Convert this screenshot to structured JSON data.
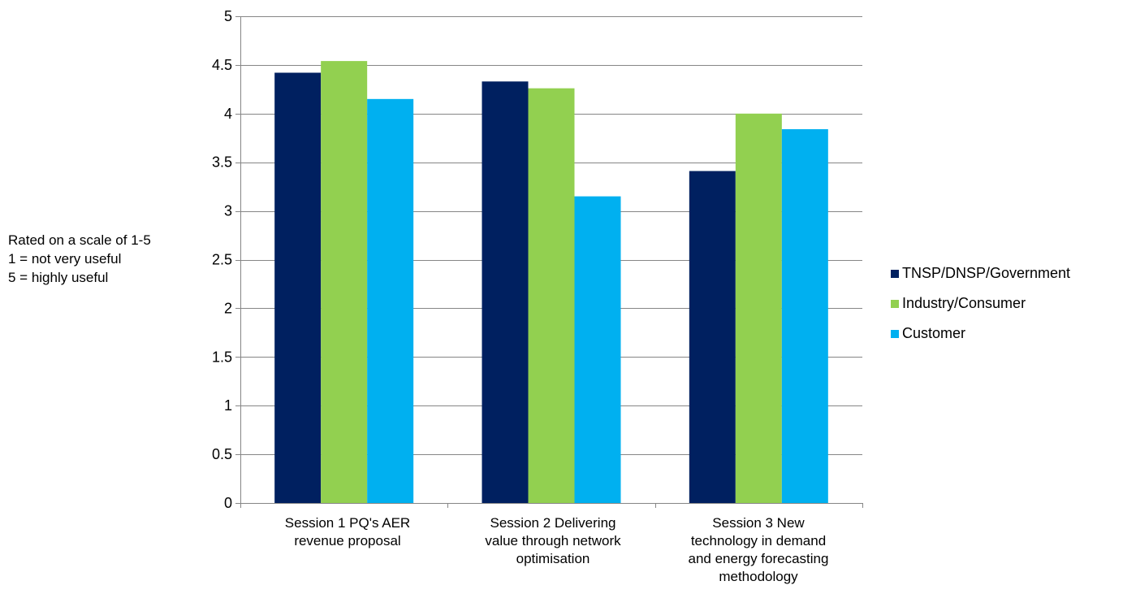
{
  "chart_data": {
    "type": "bar",
    "title": "",
    "xlabel": "",
    "ylabel_lines": [
      "Rated on a scale of 1-5",
      "1 = not very useful",
      "5 = highly useful"
    ],
    "ylim": [
      0,
      5
    ],
    "yticks": [
      "0",
      "0.5",
      "1",
      "1.5",
      "2",
      "2.5",
      "3",
      "3.5",
      "4",
      "4.5",
      "5"
    ],
    "grid": true,
    "legend_position": "right",
    "categories": [
      [
        "Session 1 PQ's AER",
        "revenue proposal"
      ],
      [
        "Session 2 Delivering",
        "value through network",
        "optimisation"
      ],
      [
        "Session 3 New",
        "technology in demand",
        "and energy forecasting",
        "methodology"
      ]
    ],
    "series": [
      {
        "name": "TNSP/DNSP/Government",
        "color": "#002060",
        "values": [
          4.42,
          4.33,
          3.41
        ]
      },
      {
        "name": "Industry/Consumer",
        "color": "#92D050",
        "values": [
          4.54,
          4.26,
          4.0
        ]
      },
      {
        "name": "Customer",
        "color": "#00B0F0",
        "values": [
          4.15,
          3.15,
          3.84
        ]
      }
    ]
  }
}
